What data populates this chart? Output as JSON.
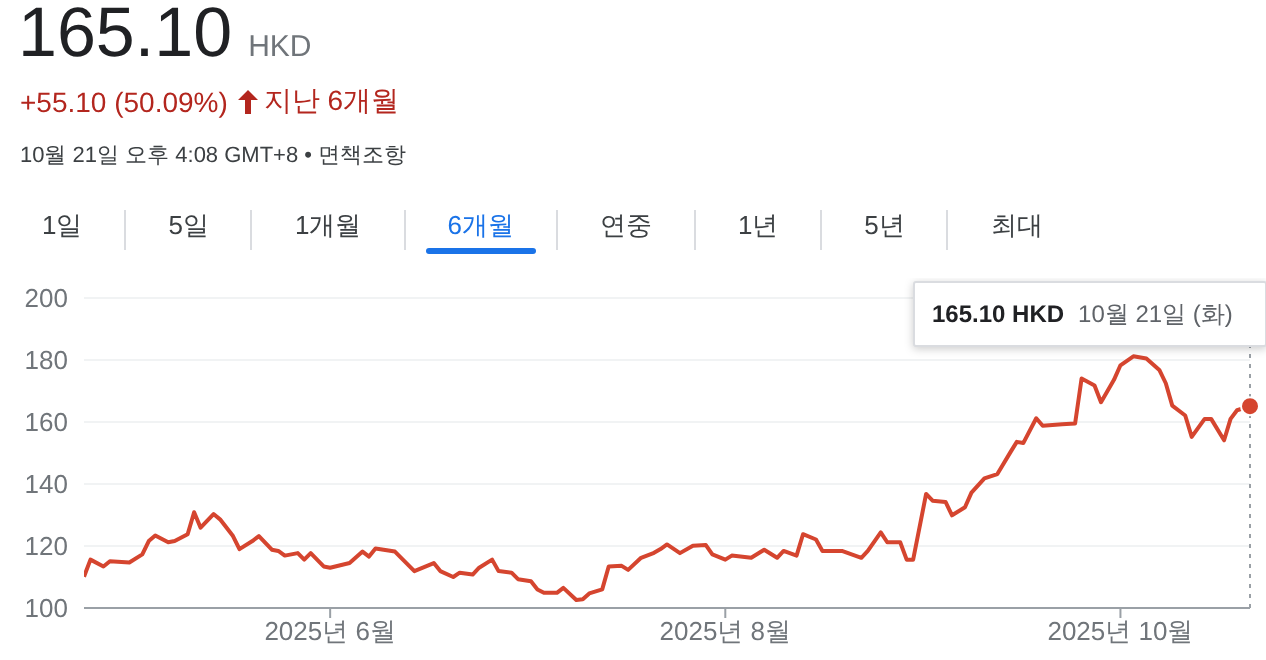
{
  "chart_data": {
    "type": "line",
    "title": "165.10",
    "annotations": [
      "HKD",
      "+55.10 (50.09%)",
      "지난 6개월",
      "10월 21일 오후 4:08 GMT+8 • 면책조항",
      "1일",
      "5일",
      "1개월",
      "6개월",
      "연중",
      "1년",
      "5년",
      "최대",
      "165.10 HKD  10월 21일 (화)"
    ],
    "x": [
      "2025-04-24",
      "2025-04-25",
      "2025-04-27",
      "2025-04-28",
      "2025-05-01",
      "2025-05-03",
      "2025-05-04",
      "2025-05-05",
      "2025-05-07",
      "2025-05-08",
      "2025-05-10",
      "2025-05-11",
      "2025-05-12",
      "2025-05-14",
      "2025-05-15",
      "2025-05-17",
      "2025-05-18",
      "2025-05-20",
      "2025-05-21",
      "2025-05-23",
      "2025-05-24",
      "2025-05-25",
      "2025-05-27",
      "2025-05-28",
      "2025-05-29",
      "2025-05-31",
      "2025-06-01",
      "2025-06-04",
      "2025-06-06",
      "2025-06-07",
      "2025-06-08",
      "2025-06-11",
      "2025-06-13",
      "2025-06-14",
      "2025-06-17",
      "2025-06-18",
      "2025-06-20",
      "2025-06-21",
      "2025-06-23",
      "2025-06-24",
      "2025-06-26",
      "2025-06-27",
      "2025-06-29",
      "2025-06-30",
      "2025-07-02",
      "2025-07-03",
      "2025-07-04",
      "2025-07-06",
      "2025-07-07",
      "2025-07-09",
      "2025-07-10",
      "2025-07-11",
      "2025-07-13",
      "2025-07-14",
      "2025-07-16",
      "2025-07-17",
      "2025-07-19",
      "2025-07-21",
      "2025-07-22",
      "2025-07-23",
      "2025-07-25",
      "2025-07-27",
      "2025-07-29",
      "2025-07-30",
      "2025-08-01",
      "2025-08-02",
      "2025-08-05",
      "2025-08-07",
      "2025-08-09",
      "2025-08-10",
      "2025-08-12",
      "2025-08-13",
      "2025-08-15",
      "2025-08-16",
      "2025-08-19",
      "2025-08-22",
      "2025-08-23",
      "2025-08-25",
      "2025-08-26",
      "2025-08-28",
      "2025-08-29",
      "2025-08-30",
      "2025-09-01",
      "2025-09-02",
      "2025-09-04",
      "2025-09-05",
      "2025-09-07",
      "2025-09-08",
      "2025-09-10",
      "2025-09-12",
      "2025-09-14",
      "2025-09-15",
      "2025-09-16",
      "2025-09-18",
      "2025-09-19",
      "2025-09-22",
      "2025-09-24",
      "2025-09-25",
      "2025-09-27",
      "2025-09-28",
      "2025-09-30",
      "2025-10-01",
      "2025-10-03",
      "2025-10-05",
      "2025-10-07",
      "2025-10-08",
      "2025-10-09",
      "2025-10-11",
      "2025-10-12",
      "2025-10-14",
      "2025-10-15",
      "2025-10-17",
      "2025-10-18",
      "2025-10-19",
      "2025-10-21"
    ],
    "series": [
      {
        "color": "#d5452f",
        "values": [
          110.1,
          115.6,
          113.4,
          115.1,
          114.7,
          117.3,
          121.6,
          123.4,
          121.2,
          121.6,
          123.8,
          130.9,
          125.9,
          130.3,
          128.6,
          123.2,
          119,
          121.6,
          123.2,
          118.8,
          118.4,
          116.9,
          117.7,
          115.6,
          117.7,
          113.4,
          113,
          114.5,
          118.2,
          116.6,
          119.2,
          118.2,
          114,
          111.9,
          114.5,
          111.9,
          110,
          111.4,
          110.8,
          113,
          115.6,
          111.9,
          111.4,
          109.3,
          108.6,
          106,
          104.9,
          104.9,
          106.5,
          102.6,
          102.8,
          104.7,
          106,
          113.4,
          113.6,
          112.3,
          116.2,
          117.8,
          119,
          120.5,
          117.7,
          120.1,
          120.3,
          117.3,
          115.6,
          116.9,
          116.2,
          118.8,
          116.2,
          118.4,
          116.9,
          123.8,
          122.1,
          118.4,
          118.4,
          116.2,
          118.4,
          124.4,
          121.2,
          121.2,
          115.6,
          115.6,
          136.8,
          134.6,
          134.2,
          129.9,
          132.5,
          137.2,
          141.8,
          143.2,
          150.2,
          153.6,
          153.2,
          161.2,
          158.8,
          159.3,
          159.5,
          174,
          171.8,
          166.4,
          173.6,
          178.3,
          181.2,
          180.5,
          176.8,
          172.5,
          165.3,
          162.1,
          155.2,
          161,
          161,
          154.1,
          161,
          163.8,
          165.1
        ]
      }
    ],
    "xlim": [
      "2025-04-24",
      "2025-10-21"
    ],
    "xticks": [
      {
        "value": "2025-06-01",
        "label": "2025년 6월"
      },
      {
        "value": "2025-08-01",
        "label": "2025년 8월"
      },
      {
        "value": "2025-10-01",
        "label": "2025년 10월"
      }
    ],
    "ylim": [
      100,
      200
    ],
    "yticks": [
      100,
      120,
      140,
      160,
      180,
      200
    ],
    "grid": "y",
    "marker": "none",
    "line_style": "solid",
    "legend": false,
    "ref_lines": [
      {
        "axis": "x",
        "value": "2025-10-21",
        "line_style": "dotted",
        "color": "#9aa0a6"
      }
    ]
  }
}
